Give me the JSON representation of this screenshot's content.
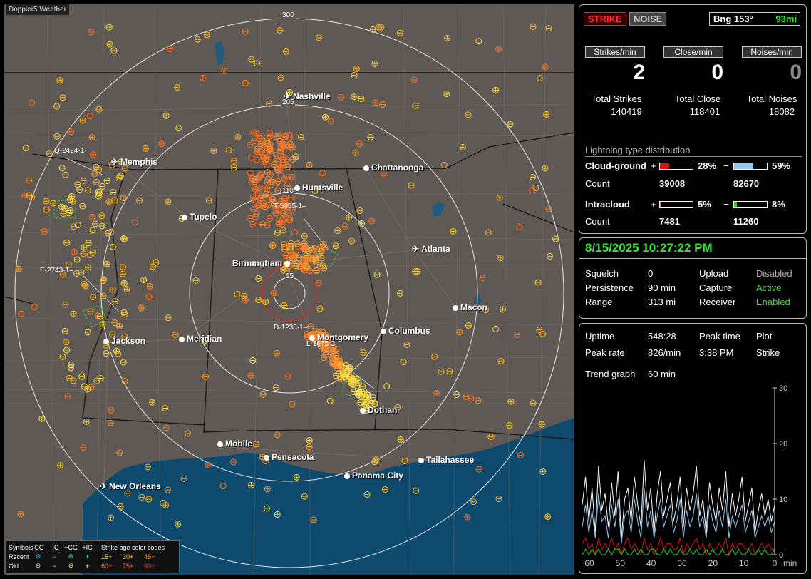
{
  "app_title": "Doppler5 Weather",
  "map": {
    "cities": [
      {
        "name": "Nashville",
        "icon": "airport-icon"
      },
      {
        "name": "Memphis",
        "icon": "airport-icon"
      },
      {
        "name": "Chattanooga",
        "icon": "city-dot-icon"
      },
      {
        "name": "Huntsville",
        "icon": "city-dot-icon"
      },
      {
        "name": "Tupelo",
        "icon": "city-dot-icon"
      },
      {
        "name": "Atlanta",
        "icon": "airport-icon"
      },
      {
        "name": "Birmingham",
        "icon": "city-dot-icon"
      },
      {
        "name": "Macon",
        "icon": "city-dot-icon"
      },
      {
        "name": "Meridian",
        "icon": "city-dot-icon"
      },
      {
        "name": "Jackson",
        "icon": "city-dot-icon"
      },
      {
        "name": "Columbus",
        "icon": "city-dot-icon"
      },
      {
        "name": "Montgomery",
        "icon": "city-dot-icon"
      },
      {
        "name": "Dothan",
        "icon": "city-dot-icon"
      },
      {
        "name": "Mobile",
        "icon": "city-dot-icon"
      },
      {
        "name": "Pensacola",
        "icon": "city-dot-icon"
      },
      {
        "name": "Tallahassee",
        "icon": "city-dot-icon"
      },
      {
        "name": "Panama City",
        "icon": "city-dot-icon"
      },
      {
        "name": "New Orleans",
        "icon": "airport-icon"
      }
    ],
    "range_labels": [
      "300",
      "205",
      "110",
      "15"
    ],
    "cell_labels": [
      "Q-2424",
      "T-5955",
      "E-2743",
      "D-1238",
      "L-1675"
    ],
    "cell_suffixes": {
      "Q-2424": "·1·",
      "T-5955": "·1–",
      "E-2743": "·1–",
      "D-1238": "·1–",
      "L-1675": "·2–"
    },
    "legend": {
      "header": [
        "Symbols",
        "-CG",
        "-IC",
        "+CG",
        "+IC",
        "Strike age color codes"
      ],
      "recent": {
        "label": "Recent",
        "symbols": [
          "⊖",
          "−",
          "⊕",
          "+"
        ],
        "ages": [
          "15+",
          "30+",
          "45+"
        ]
      },
      "old": {
        "label": "Old",
        "symbols": [
          "⊖",
          "−",
          "⊕",
          "+"
        ],
        "ages": [
          "60+",
          "75+",
          "90+"
        ]
      }
    }
  },
  "status": {
    "strike_tag": "STRIKE",
    "noise_tag": "NOISE",
    "bearing": "Bng 153°",
    "distance": "93mi"
  },
  "rates": {
    "strikes_label": "Strikes/min",
    "close_label": "Close/min",
    "noises_label": "Noises/min",
    "strikes": "2",
    "close": "0",
    "noises": "0"
  },
  "totals": {
    "strikes_label": "Total Strikes",
    "close_label": "Total Close",
    "noises_label": "Total Noises",
    "strikes": "140419",
    "close": "118401",
    "noises": "18082"
  },
  "distribution": {
    "title": "Lightning type distribution",
    "cg_label": "Cloud-ground",
    "ic_label": "Intracloud",
    "count_label": "Count",
    "cg_pos_pct": "28%",
    "cg_neg_pct": "59%",
    "cg_pos_count": "39008",
    "cg_neg_count": "82670",
    "ic_pos_pct": "5%",
    "ic_neg_pct": "8%",
    "ic_pos_count": "7481",
    "ic_neg_count": "11260",
    "cg_pos_frac": 0.28,
    "cg_neg_frac": 0.59,
    "ic_pos_frac": 0.05,
    "ic_neg_frac": 0.08,
    "colors": {
      "cg_pos": "#e01010",
      "cg_neg": "#8fc8f0",
      "ic_pos": "#e070b0",
      "ic_neg": "#22d822"
    }
  },
  "settings": {
    "datetime": "8/15/2025 10:27:22 PM",
    "squelch_label": "Squelch",
    "squelch": "0",
    "persistence_label": "Persistence",
    "persistence": "90 min",
    "range_label": "Range",
    "range": "313 mi",
    "upload_label": "Upload",
    "upload": "Disabled",
    "capture_label": "Capture",
    "capture": "Active",
    "receiver_label": "Receiver",
    "receiver": "Enabled"
  },
  "stats": {
    "uptime_label": "Uptime",
    "uptime": "548:28",
    "peak_time_label": "Peak time",
    "peak_time": "3:38 PM",
    "plot_label": "Plot",
    "plot": "Strike",
    "peak_rate_label": "Peak rate",
    "peak_rate": "826/min",
    "trend_label": "Trend graph",
    "trend": "60 min"
  },
  "chart_data": {
    "type": "line",
    "x_ticks": [
      "60",
      "50",
      "40",
      "30",
      "20",
      "10",
      "0"
    ],
    "x_unit": "min",
    "y_ticks": [
      "30",
      "20",
      "10",
      "0"
    ],
    "ylim": [
      0,
      30
    ],
    "xlim": [
      60,
      0
    ],
    "series": [
      {
        "color": "#ffffff",
        "values": [
          9,
          14,
          6,
          12,
          4,
          16,
          8,
          11,
          5,
          13,
          7,
          15,
          3,
          10,
          12,
          6,
          14,
          9,
          5,
          17,
          8,
          12,
          4,
          11,
          15,
          7,
          10,
          13,
          6,
          9,
          14,
          5,
          12,
          8,
          11,
          16,
          7,
          10,
          4,
          13,
          9,
          6,
          12,
          8,
          15,
          5,
          11,
          7,
          10,
          14,
          6,
          9,
          12,
          4,
          8,
          11,
          7,
          10,
          6,
          9
        ]
      },
      {
        "color": "#8fc8f0",
        "values": [
          5,
          9,
          4,
          8,
          3,
          11,
          6,
          7,
          3,
          9,
          5,
          10,
          2,
          7,
          8,
          4,
          10,
          6,
          3,
          12,
          5,
          8,
          3,
          7,
          10,
          5,
          7,
          9,
          4,
          6,
          10,
          3,
          8,
          5,
          7,
          11,
          5,
          7,
          3,
          9,
          6,
          4,
          8,
          5,
          10,
          3,
          7,
          5,
          7,
          9,
          4,
          6,
          8,
          3,
          5,
          7,
          5,
          7,
          4,
          6
        ]
      },
      {
        "color": "#e01010",
        "values": [
          2,
          3,
          1,
          2,
          0,
          3,
          1,
          2,
          1,
          3,
          1,
          2,
          0,
          2,
          3,
          1,
          2,
          1,
          0,
          3,
          1,
          2,
          0,
          1,
          3,
          1,
          2,
          2,
          1,
          1,
          3,
          0,
          2,
          1,
          2,
          3,
          1,
          2,
          0,
          2,
          1,
          1,
          2,
          1,
          3,
          0,
          2,
          1,
          2,
          2,
          1,
          1,
          2,
          0,
          1,
          2,
          1,
          2,
          1,
          1
        ]
      },
      {
        "color": "#22d822",
        "values": [
          0,
          1,
          0,
          1,
          0,
          1,
          0,
          0,
          1,
          0,
          1,
          1,
          0,
          1,
          0,
          0,
          1,
          0,
          1,
          0,
          0,
          1,
          1,
          0,
          0,
          1,
          0,
          1,
          0,
          0,
          1,
          0,
          0,
          1,
          0,
          1,
          0,
          0,
          1,
          0,
          1,
          0,
          0,
          1,
          0,
          0,
          1,
          0,
          1,
          0,
          0,
          1,
          0,
          0,
          1,
          0,
          1,
          0,
          0,
          1
        ]
      }
    ]
  }
}
